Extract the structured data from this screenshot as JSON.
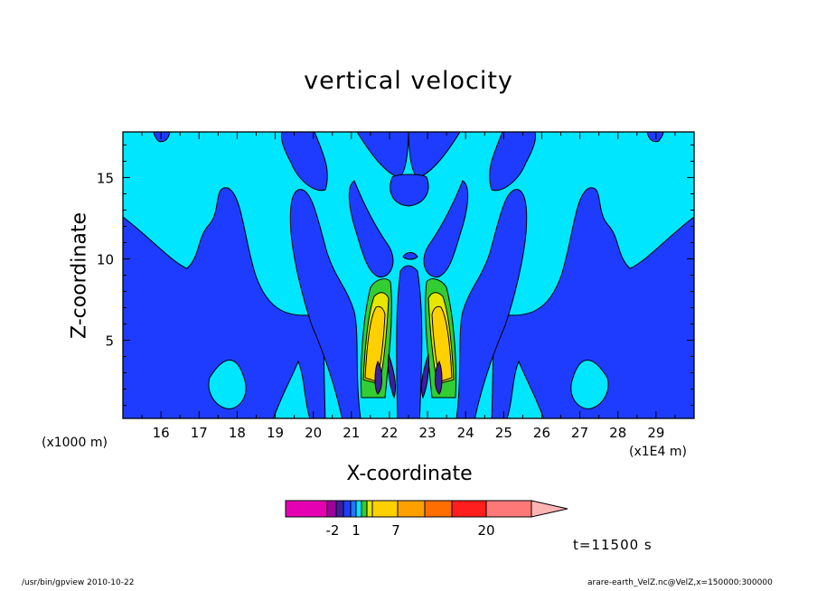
{
  "chart_data": {
    "type": "heatmap",
    "title": "vertical velocity",
    "xlabel": "X-coordinate",
    "ylabel": "Z-coordinate",
    "x_unit_note": "(x1000 m)",
    "x_multiplier_note": "(x1E4 m)",
    "xlim": [
      15.0,
      30.0
    ],
    "ylim": [
      0.2,
      17.8
    ],
    "x_ticks": [
      "16",
      "17",
      "18",
      "19",
      "20",
      "21",
      "22",
      "23",
      "24",
      "25",
      "26",
      "27",
      "28",
      "29"
    ],
    "y_ticks": [
      "5",
      "10",
      "15"
    ],
    "colorbar": {
      "colors": [
        "#e600b4",
        "#a0009e",
        "#3c1fa0",
        "#1e3cff",
        "#1e78ff",
        "#00e6ff",
        "#32cd32",
        "#e6e600",
        "#ffd000",
        "#ffa000",
        "#ff6e00",
        "#ff1e1e",
        "#ff7878",
        "#ffb4b4"
      ],
      "labels": [
        "-2",
        "1",
        "7",
        "20"
      ]
    },
    "time_label": "t=11500 s"
  },
  "footer": {
    "program": "/usr/bin/gpview   2010-10-22",
    "source": "arare-earth_VelZ.nc@VelZ,x=150000:300000"
  }
}
